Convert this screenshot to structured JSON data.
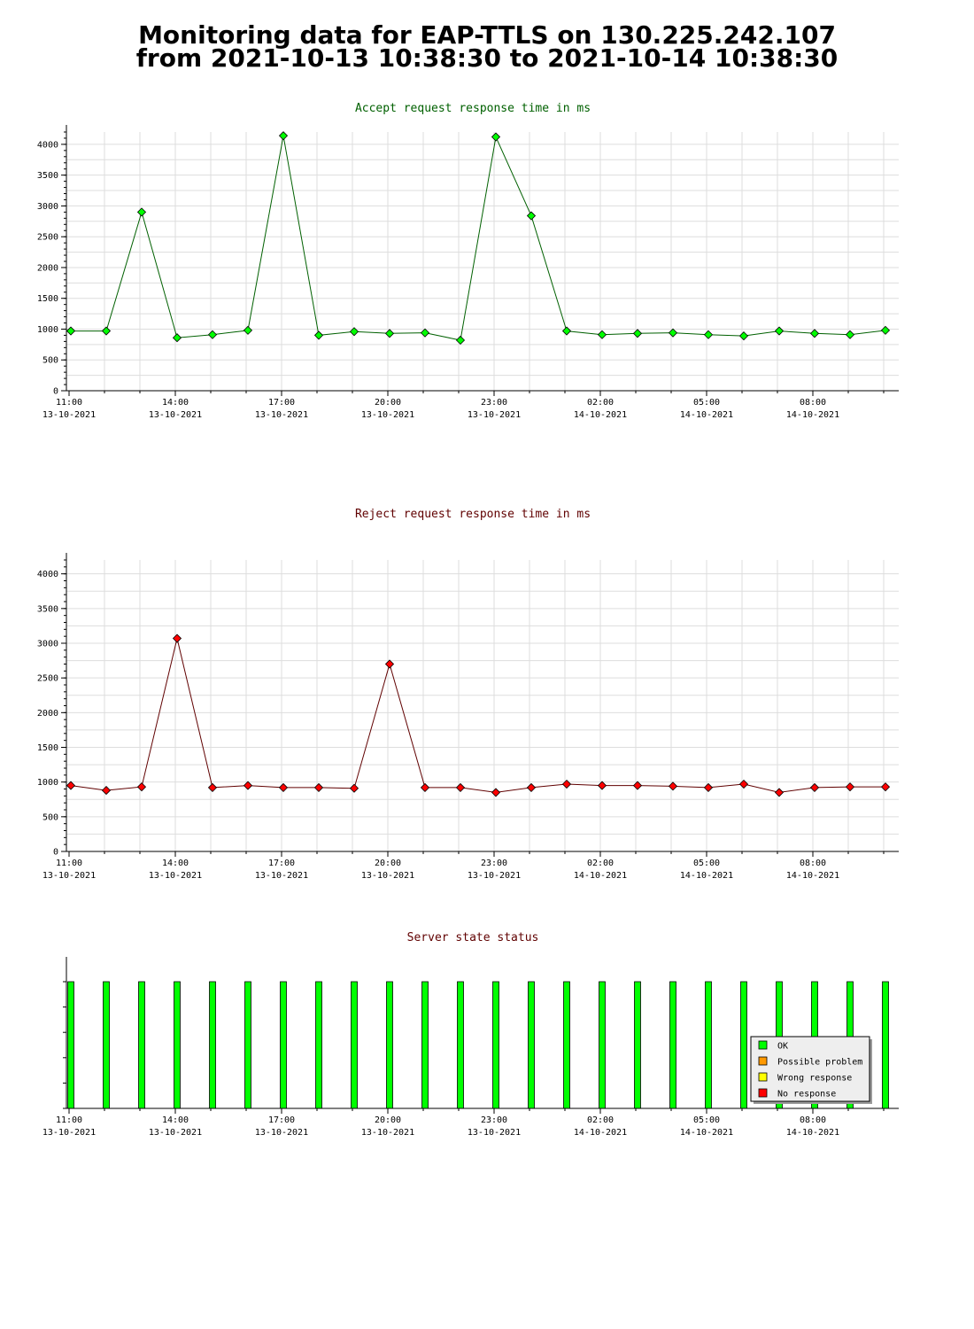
{
  "page": {
    "title_line1": "Monitoring data for EAP-TTLS on 130.225.242.107",
    "title_line2": "from 2021-10-13 10:38:30 to 2021-10-14 10:38:30"
  },
  "chart_data": [
    {
      "type": "line",
      "title": "Accept request response time in ms",
      "xlabel": "",
      "ylabel": "",
      "x": [
        "2021-10-13 11:00",
        "2021-10-13 12:00",
        "2021-10-13 13:00",
        "2021-10-13 14:00",
        "2021-10-13 15:00",
        "2021-10-13 16:00",
        "2021-10-13 17:00",
        "2021-10-13 18:00",
        "2021-10-13 19:00",
        "2021-10-13 20:00",
        "2021-10-13 21:00",
        "2021-10-13 22:00",
        "2021-10-13 23:00",
        "2021-10-14 00:00",
        "2021-10-14 01:00",
        "2021-10-14 02:00",
        "2021-10-14 03:00",
        "2021-10-14 04:00",
        "2021-10-14 05:00",
        "2021-10-14 06:00",
        "2021-10-14 07:00",
        "2021-10-14 08:00",
        "2021-10-14 09:00",
        "2021-10-14 10:00"
      ],
      "series": [
        {
          "values": [
            970,
            970,
            2900,
            860,
            910,
            980,
            4140,
            900,
            960,
            930,
            940,
            820,
            4120,
            2840,
            970,
            910,
            930,
            940,
            910,
            890,
            970,
            930,
            910,
            980
          ]
        }
      ],
      "ylim": [
        0,
        4200
      ],
      "yticks": [
        0,
        500,
        1000,
        1500,
        2000,
        2500,
        3000,
        3500,
        4000
      ],
      "xticks": [
        {
          "time": "11:00",
          "date": "13-10-2021"
        },
        {
          "time": "14:00",
          "date": "13-10-2021"
        },
        {
          "time": "17:00",
          "date": "13-10-2021"
        },
        {
          "time": "20:00",
          "date": "13-10-2021"
        },
        {
          "time": "23:00",
          "date": "13-10-2021"
        },
        {
          "time": "02:00",
          "date": "14-10-2021"
        },
        {
          "time": "05:00",
          "date": "14-10-2021"
        },
        {
          "time": "08:00",
          "date": "14-10-2021"
        }
      ],
      "grid": true,
      "colors": {
        "title": "#006000",
        "line": "#006000",
        "marker": "#00ff00"
      }
    },
    {
      "type": "line",
      "title": "Reject request response time in ms",
      "xlabel": "",
      "ylabel": "",
      "x": [
        "2021-10-13 11:00",
        "2021-10-13 12:00",
        "2021-10-13 13:00",
        "2021-10-13 14:00",
        "2021-10-13 15:00",
        "2021-10-13 16:00",
        "2021-10-13 17:00",
        "2021-10-13 18:00",
        "2021-10-13 19:00",
        "2021-10-13 20:00",
        "2021-10-13 21:00",
        "2021-10-13 22:00",
        "2021-10-13 23:00",
        "2021-10-14 00:00",
        "2021-10-14 01:00",
        "2021-10-14 02:00",
        "2021-10-14 03:00",
        "2021-10-14 04:00",
        "2021-10-14 05:00",
        "2021-10-14 06:00",
        "2021-10-14 07:00",
        "2021-10-14 08:00",
        "2021-10-14 09:00",
        "2021-10-14 10:00"
      ],
      "series": [
        {
          "values": [
            950,
            880,
            930,
            3070,
            920,
            950,
            920,
            920,
            910,
            2700,
            920,
            920,
            850,
            920,
            970,
            950,
            950,
            940,
            920,
            970,
            850,
            920,
            930,
            930
          ]
        }
      ],
      "ylim": [
        0,
        4200
      ],
      "yticks": [
        0,
        500,
        1000,
        1500,
        2000,
        2500,
        3000,
        3500,
        4000
      ],
      "xticks": [
        {
          "time": "11:00",
          "date": "13-10-2021"
        },
        {
          "time": "14:00",
          "date": "13-10-2021"
        },
        {
          "time": "17:00",
          "date": "13-10-2021"
        },
        {
          "time": "20:00",
          "date": "13-10-2021"
        },
        {
          "time": "23:00",
          "date": "13-10-2021"
        },
        {
          "time": "02:00",
          "date": "14-10-2021"
        },
        {
          "time": "05:00",
          "date": "14-10-2021"
        },
        {
          "time": "08:00",
          "date": "14-10-2021"
        }
      ],
      "grid": true,
      "colors": {
        "title": "#600000",
        "line": "#600000",
        "marker": "#ff0000"
      }
    },
    {
      "type": "bar",
      "title": "Server state status",
      "xlabel": "",
      "ylabel": "",
      "categories": [
        "2021-10-13 11:00",
        "2021-10-13 12:00",
        "2021-10-13 13:00",
        "2021-10-13 14:00",
        "2021-10-13 15:00",
        "2021-10-13 16:00",
        "2021-10-13 17:00",
        "2021-10-13 18:00",
        "2021-10-13 19:00",
        "2021-10-13 20:00",
        "2021-10-13 21:00",
        "2021-10-13 22:00",
        "2021-10-13 23:00",
        "2021-10-14 00:00",
        "2021-10-14 01:00",
        "2021-10-14 02:00",
        "2021-10-14 03:00",
        "2021-10-14 04:00",
        "2021-10-14 05:00",
        "2021-10-14 06:00",
        "2021-10-14 07:00",
        "2021-10-14 08:00",
        "2021-10-14 09:00",
        "2021-10-14 10:00"
      ],
      "states": [
        "OK",
        "OK",
        "OK",
        "OK",
        "OK",
        "OK",
        "OK",
        "OK",
        "OK",
        "OK",
        "OK",
        "OK",
        "OK",
        "OK",
        "OK",
        "OK",
        "OK",
        "OK",
        "OK",
        "OK",
        "OK",
        "OK",
        "OK",
        "OK"
      ],
      "xticks": [
        {
          "time": "11:00",
          "date": "13-10-2021"
        },
        {
          "time": "14:00",
          "date": "13-10-2021"
        },
        {
          "time": "17:00",
          "date": "13-10-2021"
        },
        {
          "time": "20:00",
          "date": "13-10-2021"
        },
        {
          "time": "23:00",
          "date": "13-10-2021"
        },
        {
          "time": "02:00",
          "date": "14-10-2021"
        },
        {
          "time": "05:00",
          "date": "14-10-2021"
        },
        {
          "time": "08:00",
          "date": "14-10-2021"
        }
      ],
      "legend": [
        {
          "label": "OK",
          "color": "#00ff00"
        },
        {
          "label": "Possible problem",
          "color": "#ff9900"
        },
        {
          "label": "Wrong response",
          "color": "#ffff00"
        },
        {
          "label": "No response",
          "color": "#ff0000"
        }
      ],
      "legend_position": "bottom-right",
      "colors": {
        "title": "#600000"
      }
    }
  ]
}
